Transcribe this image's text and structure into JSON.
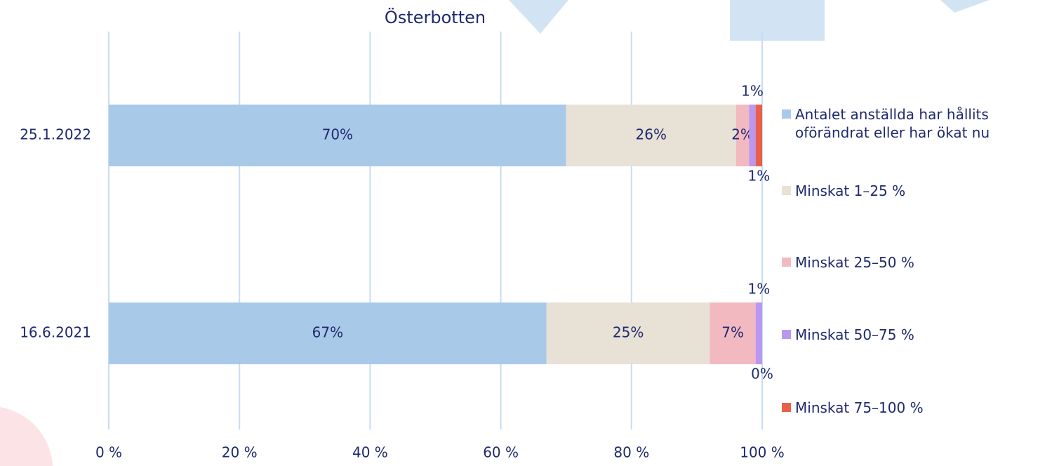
{
  "chart_data": {
    "type": "stacked_barh",
    "title": "Österbotten",
    "categories": [
      "25.1.2022",
      "16.6.2021"
    ],
    "series": [
      {
        "name": "Antalet anställda har hållits oförändrat eller har ökat nu",
        "color": "#a9c9e8",
        "values": [
          70,
          67
        ],
        "value_labels": [
          "70%",
          "67%"
        ]
      },
      {
        "name": "Minskat 1–25 %",
        "color": "#e8e1d5",
        "values": [
          26,
          25
        ],
        "value_labels": [
          "26%",
          "25%"
        ]
      },
      {
        "name": "Minskat 25–50 %",
        "color": "#f2b9c1",
        "values": [
          2,
          7
        ],
        "value_labels": [
          "2%",
          "7%"
        ]
      },
      {
        "name": "Minskat 50–75 %",
        "color": "#b898f0",
        "values": [
          1,
          1
        ],
        "value_labels": [
          "1%",
          "1%"
        ]
      },
      {
        "name": "Minskat 75–100 %",
        "color": "#e8604a",
        "values": [
          1,
          0
        ],
        "value_labels": [
          "1%",
          "0%"
        ]
      }
    ],
    "xlim": [
      0,
      100
    ],
    "xticks": [
      {
        "value": 0,
        "label": "0 %"
      },
      {
        "value": 20,
        "label": "20 %"
      },
      {
        "value": 40,
        "label": "40 %"
      },
      {
        "value": 60,
        "label": "60 %"
      },
      {
        "value": 80,
        "label": "80 %"
      },
      {
        "value": 100,
        "label": "100 %"
      }
    ],
    "grid": true,
    "legend": "right"
  }
}
